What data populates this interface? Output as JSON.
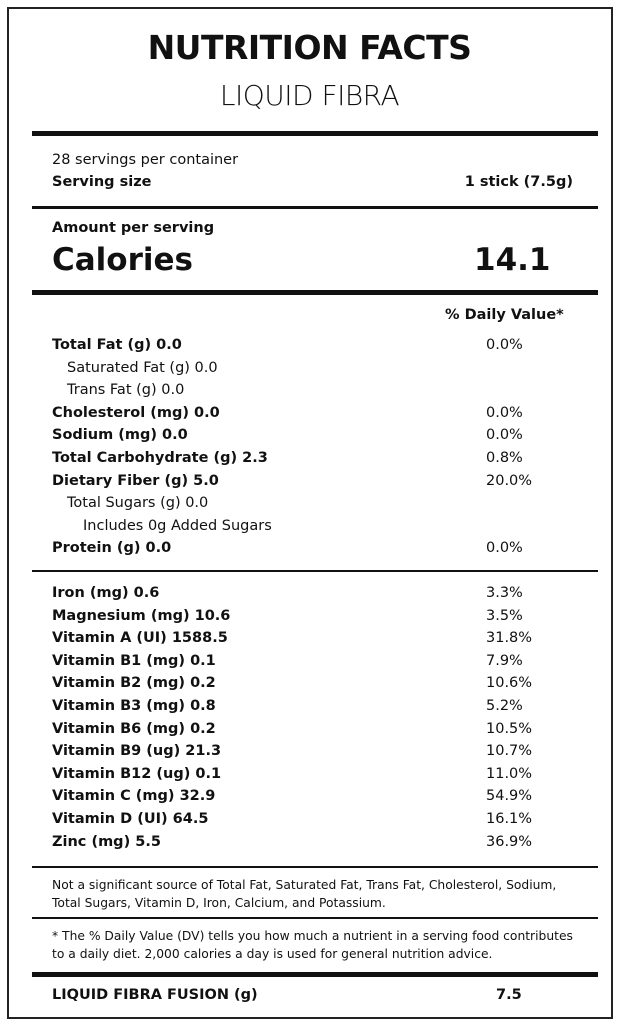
{
  "title": "NUTRITION FACTS",
  "subtitle": "LIQUID FIBRA",
  "servings_per_container": "28 servings per container",
  "serving_size_label": "Serving size",
  "serving_size_value": "1 stick (7.5g)",
  "amount_per_serving": "Amount per serving",
  "calories_label": "Calories",
  "calories_value": "14.1",
  "daily_value_header": "% Daily Value*",
  "nutrients": [
    {
      "label": "Total Fat (g) 0.0",
      "dv": "0.0%"
    },
    {
      "label": "Saturated Fat (g) 0.0",
      "dv": ""
    },
    {
      "label": "Trans Fat (g) 0.0",
      "dv": ""
    },
    {
      "label": "Cholesterol (mg) 0.0",
      "dv": "0.0%"
    },
    {
      "label": "Sodium (mg) 0.0",
      "dv": "0.0%"
    },
    {
      "label": "Total Carbohydrate (g) 2.3",
      "dv": "0.8%"
    },
    {
      "label": "Dietary Fiber (g) 5.0",
      "dv": "20.0%"
    },
    {
      "label": "Total Sugars (g) 0.0",
      "dv": ""
    },
    {
      "label": "Includes 0g Added Sugars",
      "dv": ""
    },
    {
      "label": "Protein (g) 0.0",
      "dv": "0.0%"
    }
  ],
  "micronutrients": [
    {
      "label": "Iron (mg) 0.6",
      "dv": "3.3%"
    },
    {
      "label": "Magnesium (mg) 10.6",
      "dv": "3.5%"
    },
    {
      "label": "Vitamin A (UI) 1588.5",
      "dv": "31.8%"
    },
    {
      "label": "Vitamin B1 (mg) 0.1",
      "dv": "7.9%"
    },
    {
      "label": "Vitamin B2 (mg) 0.2",
      "dv": "10.6%"
    },
    {
      "label": "Vitamin B3 (mg) 0.8",
      "dv": "5.2%"
    },
    {
      "label": "Vitamin B6 (mg) 0.2",
      "dv": "10.5%"
    },
    {
      "label": "Vitamin B9 (ug) 21.3",
      "dv": "10.7%"
    },
    {
      "label": "Vitamin B12 (ug) 0.1",
      "dv": "11.0%"
    },
    {
      "label": "Vitamin C (mg) 32.9",
      "dv": "54.9%"
    },
    {
      "label": "Vitamin D (UI) 64.5",
      "dv": "16.1%"
    },
    {
      "label": "Zinc (mg) 5.5",
      "dv": "36.9%"
    }
  ],
  "not_significant_note": "Not a significant source of Total Fat, Saturated Fat, Trans Fat, Cholesterol, Sodium, Total Sugars, Vitamin D, Iron, Calcium, and Potassium.",
  "dv_footnote": "* The % Daily Value (DV) tells you how much a nutrient in a serving food contributes to a daily diet. 2,000 calories a day is used for general nutrition advice.",
  "blend_label": "LIQUID FIBRA FUSION (g)",
  "blend_value": "7.5"
}
